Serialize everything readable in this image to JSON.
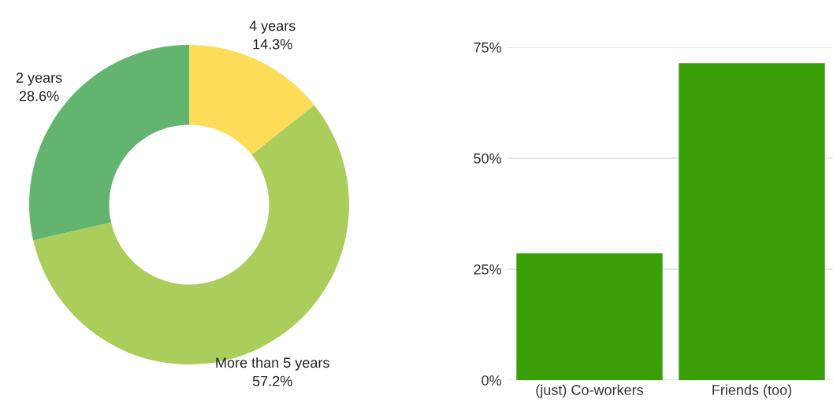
{
  "chart_data": [
    {
      "type": "donut",
      "categories": [
        "4 years",
        "More than 5 years",
        "2 years"
      ],
      "values": [
        14.3,
        57.2,
        28.6
      ],
      "colors": [
        "#fddc59",
        "#aacd5c",
        "#62b46e"
      ],
      "value_labels": [
        "14.3%",
        "57.2%",
        "28.6%"
      ]
    },
    {
      "type": "bar",
      "categories": [
        "(just) Co-workers",
        "Friends (too)"
      ],
      "values": [
        28.6,
        71.4
      ],
      "color": "#3a9f07",
      "ylim": [
        0,
        75
      ],
      "yticks": [
        {
          "value": 0,
          "label": "0%"
        },
        {
          "value": 25,
          "label": "25%"
        },
        {
          "value": 50,
          "label": "50%"
        },
        {
          "value": 75,
          "label": "75%"
        }
      ],
      "grid": "y"
    }
  ]
}
